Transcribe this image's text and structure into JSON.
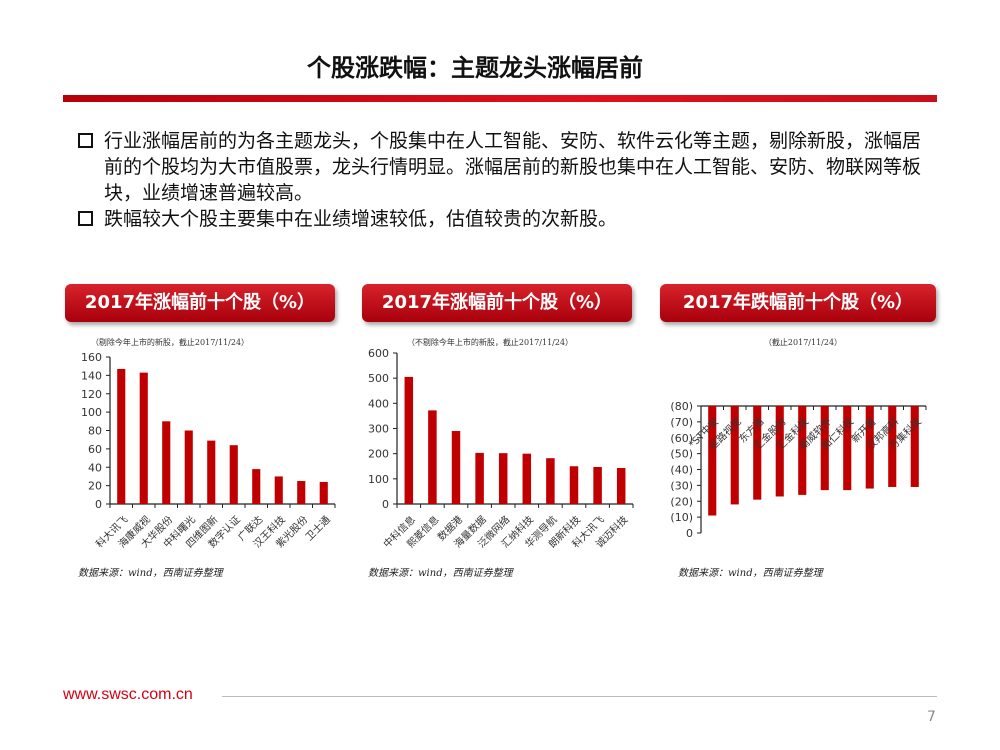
{
  "title": "个股涨跌幅：主题龙头涨幅居前",
  "bullets": [
    "行业涨幅居前的为各主题龙头，个股集中在人工智能、安防、软件云化等主题，剔除新股，涨幅居前的个股均为大市值股票，龙头行情明显。涨幅居前的新股也集中在人工智能、安防、物联网等板块，业绩增速普遍较高。",
    "跌幅较大个股主要集中在业绩增速较低，估值较贵的次新股。"
  ],
  "footer": {
    "url": "www.swsc.com.cn",
    "page": "7"
  },
  "colors": {
    "accent": "#c00000",
    "bar": "#c00000",
    "neg_tick": "#e00000"
  },
  "chart_data": [
    {
      "type": "bar",
      "header": "2017年涨幅前十个股（%）",
      "note": "（剔除今年上市的新股，截止2017/11/24）",
      "source": "数据来源：wind，西南证券整理",
      "categories": [
        "科大讯飞",
        "海康威视",
        "大华股份",
        "中科曙光",
        "四维图新",
        "数字认证",
        "广联达",
        "汉王科技",
        "紫光股份",
        "卫士通"
      ],
      "values": [
        147,
        143,
        90,
        80,
        69,
        64,
        38,
        30,
        25,
        24
      ],
      "ylim": [
        0,
        160
      ],
      "yticks": [
        "0",
        "20",
        "40",
        "60",
        "80",
        "100",
        "120",
        "140",
        "160"
      ]
    },
    {
      "type": "bar",
      "header": "2017年涨幅前十个股（%）",
      "note": "（不剔除今年上市的新股，截止2017/11/24）",
      "source": "数据来源：wind，西南证券整理",
      "categories": [
        "中科信息",
        "熙菱信息",
        "数据港",
        "海量数据",
        "泛微网络",
        "汇纳科技",
        "华测导航",
        "朗新科技",
        "科大讯飞",
        "诚迈科技"
      ],
      "values": [
        505,
        372,
        290,
        203,
        202,
        200,
        182,
        150,
        147,
        143
      ],
      "ylim": [
        0,
        600
      ],
      "yticks": [
        "0",
        "100",
        "200",
        "300",
        "400",
        "500",
        "600"
      ]
    },
    {
      "type": "bar",
      "header": "2017年跌幅前十个股（%）",
      "note": "（截止2017/11/24）",
      "source": "数据来源：wind，西南证券整理",
      "categories": [
        "*ST中安",
        "丝路视觉",
        "东方通",
        "汇金股份",
        "汇金科技",
        "南威软件",
        "和仁科技",
        "新开普",
        "汉邦高科",
        "万集科技"
      ],
      "values": [
        -69,
        -62,
        -59,
        -57,
        -56,
        -53,
        -53,
        -52,
        -51,
        -51
      ],
      "ylim": [
        -80,
        0
      ],
      "yticks": [
        "0",
        "(10)",
        "(20)",
        "(30)",
        "(40)",
        "(50)",
        "(60)",
        "(70)",
        "(80)"
      ]
    }
  ]
}
